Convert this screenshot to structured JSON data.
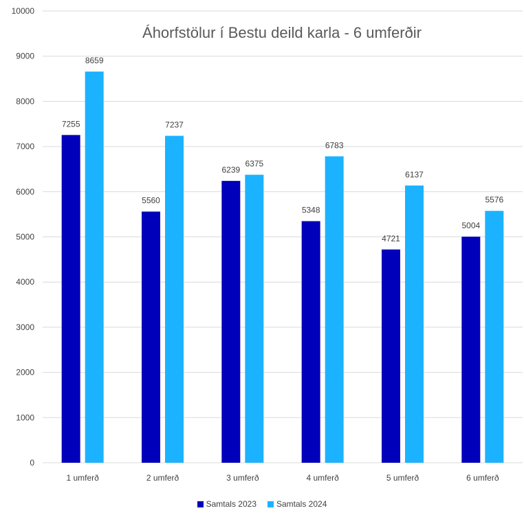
{
  "chart_data": {
    "type": "bar",
    "title": "Áhorfstölur í Bestu deild karla - 6 umferðir",
    "xlabel": "",
    "ylabel": "",
    "ylim": [
      0,
      10000
    ],
    "yticks": [
      0,
      1000,
      2000,
      3000,
      4000,
      5000,
      6000,
      7000,
      8000,
      9000,
      10000
    ],
    "grid": true,
    "legend_position": "bottom",
    "data_labels": true,
    "categories": [
      "1 umferð",
      "2 umferð",
      "3 umferð",
      "4 umferð",
      "5 umferð",
      "6 umferð"
    ],
    "series": [
      {
        "name": "Samtals 2023",
        "color": "#0000BB",
        "values": [
          7255,
          5560,
          6239,
          5348,
          4721,
          5004
        ]
      },
      {
        "name": "Samtals 2024",
        "color": "#1BB3FF",
        "values": [
          8659,
          7237,
          6375,
          6783,
          6137,
          5576
        ]
      }
    ]
  }
}
